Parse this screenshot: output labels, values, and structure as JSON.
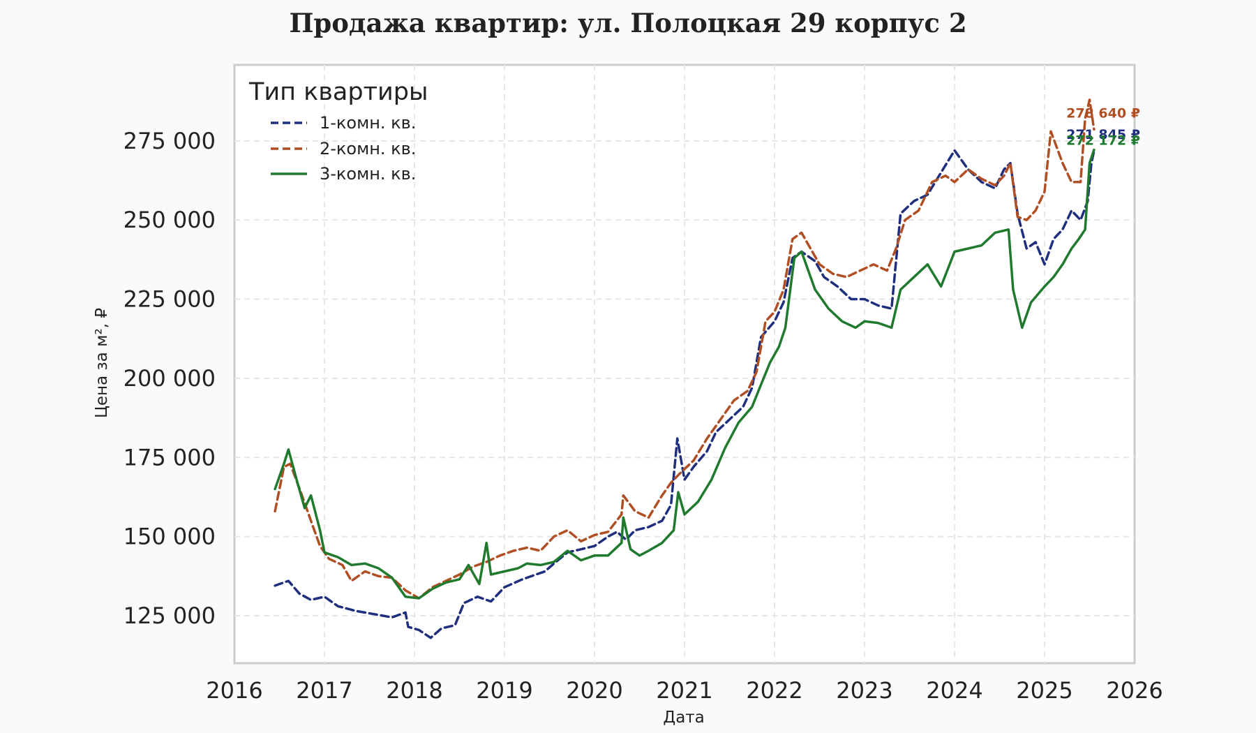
{
  "chart_data": {
    "type": "line",
    "title": "Продажа квартир: ул. Полоцкая 29 корпус 2",
    "xlabel": "Дата",
    "ylabel": "Цена за м², ₽",
    "xlim": [
      2016,
      2026
    ],
    "ylim": [
      110000,
      299000
    ],
    "x_ticks": [
      "2016",
      "2017",
      "2018",
      "2019",
      "2020",
      "2021",
      "2022",
      "2023",
      "2024",
      "2025",
      "2026"
    ],
    "y_ticks": [
      "125 000",
      "150 000",
      "175 000",
      "200 000",
      "225 000",
      "250 000",
      "275 000"
    ],
    "y_tick_values": [
      125000,
      150000,
      175000,
      200000,
      225000,
      250000,
      275000
    ],
    "grid": true,
    "legend": {
      "title": "Тип квартиры",
      "position": "top-left"
    },
    "series": [
      {
        "name": "1-комн. кв.",
        "color": "#1f2f7d",
        "style": "dashed",
        "end_label": "271 845 ₽",
        "points": [
          [
            2016.45,
            134500
          ],
          [
            2016.6,
            136000
          ],
          [
            2016.72,
            132000
          ],
          [
            2016.85,
            130000
          ],
          [
            2017.0,
            131000
          ],
          [
            2017.15,
            128000
          ],
          [
            2017.35,
            126500
          ],
          [
            2017.55,
            125500
          ],
          [
            2017.75,
            124500
          ],
          [
            2017.9,
            126000
          ],
          [
            2017.93,
            121500
          ],
          [
            2018.05,
            120500
          ],
          [
            2018.18,
            118000
          ],
          [
            2018.3,
            121000
          ],
          [
            2018.45,
            122000
          ],
          [
            2018.55,
            129000
          ],
          [
            2018.7,
            131000
          ],
          [
            2018.85,
            129500
          ],
          [
            2019.0,
            134000
          ],
          [
            2019.2,
            136500
          ],
          [
            2019.35,
            138000
          ],
          [
            2019.45,
            139000
          ],
          [
            2019.55,
            141500
          ],
          [
            2019.7,
            145000
          ],
          [
            2019.85,
            146000
          ],
          [
            2020.0,
            147000
          ],
          [
            2020.15,
            150000
          ],
          [
            2020.25,
            151500
          ],
          [
            2020.35,
            149000
          ],
          [
            2020.45,
            152000
          ],
          [
            2020.6,
            153000
          ],
          [
            2020.75,
            155000
          ],
          [
            2020.85,
            160000
          ],
          [
            2020.92,
            181000
          ],
          [
            2021.0,
            168000
          ],
          [
            2021.1,
            172000
          ],
          [
            2021.25,
            177000
          ],
          [
            2021.35,
            183000
          ],
          [
            2021.5,
            187000
          ],
          [
            2021.65,
            191000
          ],
          [
            2021.75,
            197000
          ],
          [
            2021.85,
            213000
          ],
          [
            2022.0,
            218000
          ],
          [
            2022.1,
            224000
          ],
          [
            2022.2,
            238000
          ],
          [
            2022.3,
            240000
          ],
          [
            2022.45,
            237000
          ],
          [
            2022.55,
            232000
          ],
          [
            2022.7,
            229000
          ],
          [
            2022.85,
            225000
          ],
          [
            2023.0,
            225000
          ],
          [
            2023.15,
            223000
          ],
          [
            2023.3,
            222000
          ],
          [
            2023.4,
            252000
          ],
          [
            2023.55,
            256000
          ],
          [
            2023.7,
            258000
          ],
          [
            2023.85,
            265000
          ],
          [
            2024.0,
            272000
          ],
          [
            2024.15,
            266000
          ],
          [
            2024.3,
            262000
          ],
          [
            2024.45,
            260000
          ],
          [
            2024.55,
            266000
          ],
          [
            2024.62,
            268000
          ],
          [
            2024.7,
            252000
          ],
          [
            2024.8,
            241000
          ],
          [
            2024.9,
            243000
          ],
          [
            2025.0,
            236000
          ],
          [
            2025.1,
            244000
          ],
          [
            2025.2,
            247000
          ],
          [
            2025.3,
            253000
          ],
          [
            2025.4,
            250000
          ],
          [
            2025.48,
            256000
          ],
          [
            2025.52,
            268000
          ],
          [
            2025.55,
            271845
          ]
        ]
      },
      {
        "name": "2-комн. кв.",
        "color": "#b04f24",
        "style": "dashed",
        "end_label": "278 640 ₽",
        "points": [
          [
            2016.45,
            158000
          ],
          [
            2016.55,
            172000
          ],
          [
            2016.62,
            173000
          ],
          [
            2016.75,
            163000
          ],
          [
            2016.85,
            155000
          ],
          [
            2016.95,
            147000
          ],
          [
            2017.05,
            143000
          ],
          [
            2017.2,
            141000
          ],
          [
            2017.3,
            136000
          ],
          [
            2017.45,
            139000
          ],
          [
            2017.6,
            137500
          ],
          [
            2017.75,
            137000
          ],
          [
            2017.9,
            133000
          ],
          [
            2018.05,
            130500
          ],
          [
            2018.2,
            134000
          ],
          [
            2018.35,
            136000
          ],
          [
            2018.5,
            138000
          ],
          [
            2018.65,
            140500
          ],
          [
            2018.8,
            142000
          ],
          [
            2018.95,
            144000
          ],
          [
            2019.1,
            145500
          ],
          [
            2019.25,
            146500
          ],
          [
            2019.4,
            145500
          ],
          [
            2019.55,
            150000
          ],
          [
            2019.7,
            152000
          ],
          [
            2019.85,
            148500
          ],
          [
            2020.0,
            150500
          ],
          [
            2020.15,
            151500
          ],
          [
            2020.3,
            157000
          ],
          [
            2020.32,
            163000
          ],
          [
            2020.45,
            158000
          ],
          [
            2020.6,
            156000
          ],
          [
            2020.75,
            163000
          ],
          [
            2020.85,
            167000
          ],
          [
            2020.95,
            170000
          ],
          [
            2021.1,
            174000
          ],
          [
            2021.25,
            181000
          ],
          [
            2021.4,
            187000
          ],
          [
            2021.55,
            193000
          ],
          [
            2021.7,
            196000
          ],
          [
            2021.8,
            202000
          ],
          [
            2021.9,
            218000
          ],
          [
            2022.0,
            221000
          ],
          [
            2022.1,
            228000
          ],
          [
            2022.2,
            244000
          ],
          [
            2022.3,
            246000
          ],
          [
            2022.4,
            241000
          ],
          [
            2022.5,
            236000
          ],
          [
            2022.65,
            233000
          ],
          [
            2022.8,
            232000
          ],
          [
            2022.95,
            234000
          ],
          [
            2023.1,
            236000
          ],
          [
            2023.25,
            234000
          ],
          [
            2023.35,
            241000
          ],
          [
            2023.45,
            250000
          ],
          [
            2023.6,
            253000
          ],
          [
            2023.75,
            262000
          ],
          [
            2023.9,
            264000
          ],
          [
            2024.0,
            262000
          ],
          [
            2024.15,
            266000
          ],
          [
            2024.3,
            263000
          ],
          [
            2024.45,
            261000
          ],
          [
            2024.55,
            264000
          ],
          [
            2024.62,
            268000
          ],
          [
            2024.7,
            251000
          ],
          [
            2024.8,
            250000
          ],
          [
            2024.9,
            253000
          ],
          [
            2025.0,
            259000
          ],
          [
            2025.07,
            278000
          ],
          [
            2025.2,
            268000
          ],
          [
            2025.3,
            262000
          ],
          [
            2025.4,
            262000
          ],
          [
            2025.45,
            282000
          ],
          [
            2025.5,
            288000
          ],
          [
            2025.55,
            278640
          ]
        ]
      },
      {
        "name": "3-комн. кв.",
        "color": "#1f7a2e",
        "style": "solid",
        "end_label": "272 172 ₽",
        "points": [
          [
            2016.45,
            165000
          ],
          [
            2016.55,
            173000
          ],
          [
            2016.6,
            177500
          ],
          [
            2016.7,
            167000
          ],
          [
            2016.78,
            159000
          ],
          [
            2016.85,
            163000
          ],
          [
            2016.95,
            152000
          ],
          [
            2017.0,
            145000
          ],
          [
            2017.15,
            143500
          ],
          [
            2017.3,
            141000
          ],
          [
            2017.45,
            141500
          ],
          [
            2017.6,
            140000
          ],
          [
            2017.75,
            137000
          ],
          [
            2017.9,
            131000
          ],
          [
            2018.05,
            130500
          ],
          [
            2018.2,
            133500
          ],
          [
            2018.35,
            135500
          ],
          [
            2018.5,
            136500
          ],
          [
            2018.6,
            141000
          ],
          [
            2018.72,
            135000
          ],
          [
            2018.8,
            148000
          ],
          [
            2018.85,
            138000
          ],
          [
            2019.0,
            139000
          ],
          [
            2019.15,
            140000
          ],
          [
            2019.25,
            141500
          ],
          [
            2019.4,
            141000
          ],
          [
            2019.55,
            142000
          ],
          [
            2019.7,
            145500
          ],
          [
            2019.85,
            142500
          ],
          [
            2020.0,
            144000
          ],
          [
            2020.15,
            144000
          ],
          [
            2020.3,
            148000
          ],
          [
            2020.32,
            156000
          ],
          [
            2020.4,
            146000
          ],
          [
            2020.5,
            144000
          ],
          [
            2020.6,
            145500
          ],
          [
            2020.75,
            148000
          ],
          [
            2020.88,
            152000
          ],
          [
            2020.93,
            164000
          ],
          [
            2021.0,
            157000
          ],
          [
            2021.15,
            161000
          ],
          [
            2021.3,
            168000
          ],
          [
            2021.45,
            178000
          ],
          [
            2021.6,
            186000
          ],
          [
            2021.75,
            191000
          ],
          [
            2021.85,
            198000
          ],
          [
            2021.95,
            205000
          ],
          [
            2022.05,
            210000
          ],
          [
            2022.12,
            216000
          ],
          [
            2022.22,
            238000
          ],
          [
            2022.3,
            240000
          ],
          [
            2022.45,
            228000
          ],
          [
            2022.6,
            222000
          ],
          [
            2022.75,
            218000
          ],
          [
            2022.9,
            216000
          ],
          [
            2023.0,
            218000
          ],
          [
            2023.15,
            217500
          ],
          [
            2023.3,
            216000
          ],
          [
            2023.4,
            228000
          ],
          [
            2023.55,
            232000
          ],
          [
            2023.7,
            236000
          ],
          [
            2023.85,
            229000
          ],
          [
            2024.0,
            240000
          ],
          [
            2024.15,
            241000
          ],
          [
            2024.3,
            242000
          ],
          [
            2024.45,
            246000
          ],
          [
            2024.6,
            247000
          ],
          [
            2024.65,
            228000
          ],
          [
            2024.75,
            216000
          ],
          [
            2024.85,
            224000
          ],
          [
            2025.0,
            229000
          ],
          [
            2025.1,
            232000
          ],
          [
            2025.2,
            236000
          ],
          [
            2025.3,
            241000
          ],
          [
            2025.38,
            244000
          ],
          [
            2025.45,
            247000
          ],
          [
            2025.5,
            268000
          ],
          [
            2025.55,
            272172
          ]
        ]
      }
    ]
  }
}
